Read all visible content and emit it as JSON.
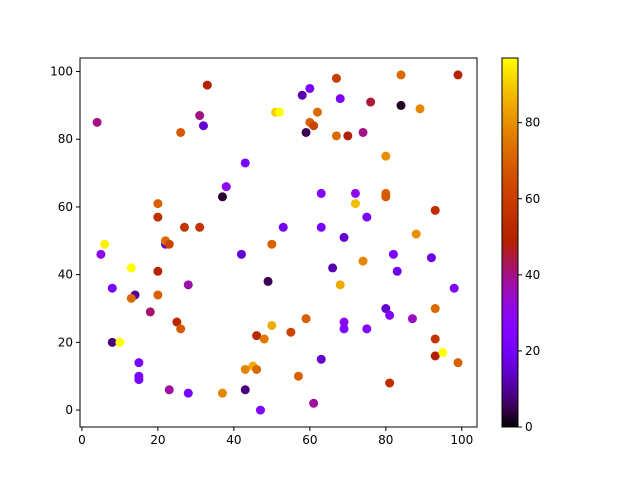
{
  "chart_data": {
    "type": "scatter",
    "x": [
      4,
      33,
      67,
      84,
      99,
      60,
      58,
      68,
      76,
      84,
      89,
      51,
      52,
      62,
      31,
      32,
      26,
      60,
      61,
      59,
      67,
      70,
      74,
      80,
      43,
      38,
      37,
      63,
      72,
      80,
      80,
      72,
      20,
      75,
      93,
      20,
      27,
      31,
      53,
      63,
      88,
      69,
      6,
      22,
      22,
      23,
      50,
      5,
      42,
      82,
      92,
      74,
      13,
      66,
      20,
      83,
      49,
      68,
      28,
      8,
      98,
      14,
      13,
      20,
      93,
      80,
      81,
      59,
      87,
      18,
      69,
      25,
      26,
      50,
      69,
      75,
      55,
      46,
      48,
      93,
      8,
      10,
      93,
      95,
      63,
      15,
      99,
      45,
      43,
      46,
      57,
      15,
      15,
      81,
      23,
      43,
      28,
      37,
      61,
      47
    ],
    "y": [
      85,
      96,
      98,
      99,
      99,
      95,
      93,
      92,
      91,
      90,
      89,
      88,
      88,
      88,
      87,
      84,
      82,
      85,
      84,
      82,
      81,
      81,
      82,
      75,
      73,
      66,
      63,
      64,
      64,
      64,
      63,
      61,
      61,
      57,
      59,
      57,
      54,
      54,
      54,
      54,
      52,
      51,
      49,
      49,
      50,
      49,
      49,
      46,
      46,
      46,
      45,
      44,
      42,
      42,
      41,
      41,
      38,
      37,
      37,
      36,
      36,
      34,
      33,
      34,
      30,
      30,
      28,
      27,
      27,
      29,
      26,
      26,
      24,
      25,
      24,
      24,
      23,
      22,
      21,
      21,
      20,
      20,
      16,
      17,
      15,
      14,
      14,
      13,
      12,
      12,
      10,
      10,
      9,
      8,
      6,
      6,
      5,
      5,
      2,
      0
    ],
    "c": [
      40,
      50,
      60,
      72,
      50,
      22,
      12,
      22,
      45,
      2,
      78,
      90,
      97,
      72,
      40,
      15,
      68,
      70,
      62,
      5,
      72,
      48,
      40,
      80,
      22,
      30,
      3,
      25,
      30,
      70,
      68,
      88,
      70,
      22,
      55,
      55,
      57,
      57,
      20,
      22,
      80,
      15,
      95,
      15,
      72,
      62,
      70,
      30,
      15,
      22,
      18,
      78,
      97,
      12,
      50,
      18,
      5,
      85,
      37,
      22,
      25,
      10,
      72,
      70,
      72,
      15,
      25,
      70,
      35,
      42,
      30,
      52,
      68,
      85,
      25,
      25,
      62,
      52,
      75,
      58,
      8,
      97,
      48,
      97,
      15,
      22,
      70,
      85,
      78,
      72,
      70,
      22,
      22,
      55,
      38,
      8,
      22,
      78,
      38,
      25
    ],
    "colormap": "gnuplot",
    "clim": [
      0,
      97
    ],
    "cticks": [
      0,
      20,
      40,
      60,
      80
    ],
    "xlim": [
      -0.5,
      104
    ],
    "xticks": [
      0,
      20,
      40,
      60,
      80,
      100
    ],
    "ylim": [
      -5,
      104
    ],
    "yticks": [
      0,
      20,
      40,
      60,
      80,
      100
    ]
  }
}
